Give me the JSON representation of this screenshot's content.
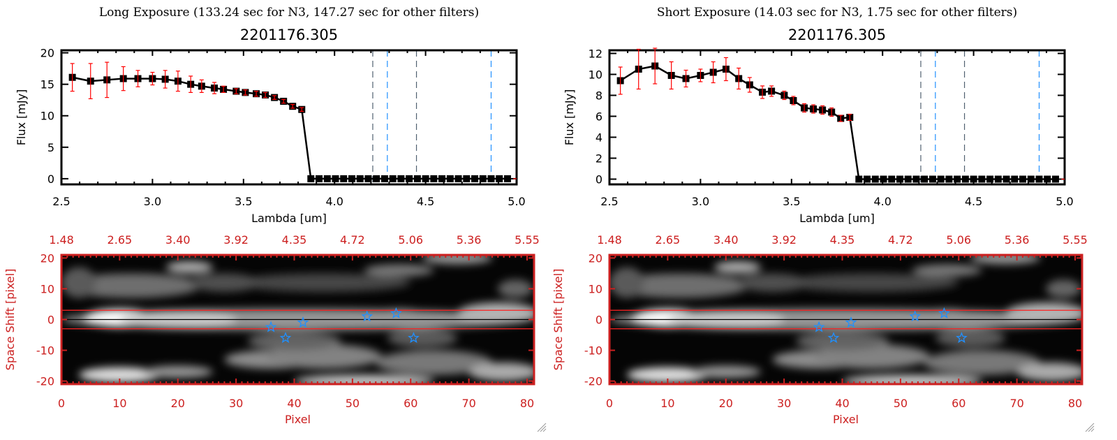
{
  "colors": {
    "axis": "#000000",
    "error": "#ff0000",
    "image_axis": "#cc2020",
    "star": "#2090ff",
    "dash_blue": "#2090ff",
    "dash_gray": "#506070"
  },
  "chart_data": [
    {
      "type": "line",
      "title": "Long Exposure (133.24 sec for N3, 147.27 sec for other filters)",
      "subtitle": "2201176.305",
      "xlabel": "Lambda [um]",
      "ylabel": "Flux [mJy]",
      "xlim": [
        2.5,
        5.0
      ],
      "ylim": [
        -0.9,
        20.4
      ],
      "xticks": [
        "2.5",
        "3.0",
        "3.5",
        "4.0",
        "4.5",
        "5.0"
      ],
      "yticks": [
        "0",
        "5",
        "10",
        "15",
        "20"
      ],
      "x": [
        2.56,
        2.66,
        2.75,
        2.84,
        2.92,
        3.0,
        3.07,
        3.14,
        3.21,
        3.27,
        3.34,
        3.39,
        3.46,
        3.51,
        3.57,
        3.62,
        3.67,
        3.72,
        3.77,
        3.82
      ],
      "y": [
        16.1,
        15.5,
        15.7,
        15.9,
        15.9,
        15.9,
        15.8,
        15.5,
        15.0,
        14.7,
        14.4,
        14.2,
        13.9,
        13.7,
        13.5,
        13.3,
        12.9,
        12.3,
        11.5,
        11.0
      ],
      "yerr": [
        2.2,
        2.8,
        2.8,
        1.9,
        1.3,
        1.0,
        1.4,
        1.6,
        1.3,
        1.0,
        0.9,
        0.5,
        0.4,
        0.4,
        0.4,
        0.4,
        0.3,
        0.3,
        0.3,
        0.3
      ],
      "zero_x": [
        3.87,
        3.915,
        3.96,
        4.005,
        4.05,
        4.095,
        4.14,
        4.185,
        4.23,
        4.275,
        4.32,
        4.365,
        4.41,
        4.455,
        4.5,
        4.545,
        4.59,
        4.635,
        4.68,
        4.725,
        4.77,
        4.815,
        4.86,
        4.905,
        4.95
      ],
      "vlines": [
        {
          "x": 4.21,
          "color": "gray"
        },
        {
          "x": 4.29,
          "color": "blue"
        },
        {
          "x": 4.45,
          "color": "gray"
        },
        {
          "x": 4.86,
          "color": "blue"
        }
      ]
    },
    {
      "type": "line",
      "title": "Short Exposure (14.03 sec for N3, 1.75 sec for other filters)",
      "subtitle": "2201176.305",
      "xlabel": "Lambda [um]",
      "ylabel": "Flux [mJy]",
      "xlim": [
        2.5,
        5.0
      ],
      "ylim": [
        -0.5,
        12.3
      ],
      "xticks": [
        "2.5",
        "3.0",
        "3.5",
        "4.0",
        "4.5",
        "5.0"
      ],
      "yticks": [
        "0",
        "2",
        "4",
        "6",
        "8",
        "10",
        "12"
      ],
      "x": [
        2.56,
        2.66,
        2.75,
        2.84,
        2.92,
        3.0,
        3.07,
        3.14,
        3.21,
        3.27,
        3.34,
        3.39,
        3.46,
        3.51,
        3.57,
        3.62,
        3.67,
        3.72,
        3.77,
        3.82
      ],
      "y": [
        9.4,
        10.5,
        10.8,
        9.9,
        9.6,
        9.9,
        10.2,
        10.5,
        9.6,
        9.0,
        8.3,
        8.4,
        8.0,
        7.5,
        6.8,
        6.7,
        6.6,
        6.4,
        5.8,
        5.9
      ],
      "yerr": [
        1.3,
        1.9,
        1.7,
        1.3,
        0.8,
        0.6,
        1.0,
        1.1,
        1.0,
        0.7,
        0.6,
        0.5,
        0.4,
        0.4,
        0.4,
        0.4,
        0.4,
        0.4,
        0.3,
        0.3
      ],
      "zero_x": [
        3.87,
        3.915,
        3.96,
        4.005,
        4.05,
        4.095,
        4.14,
        4.185,
        4.23,
        4.275,
        4.32,
        4.365,
        4.41,
        4.455,
        4.5,
        4.545,
        4.59,
        4.635,
        4.68,
        4.725,
        4.77,
        4.815,
        4.86,
        4.905,
        4.95
      ],
      "vlines": [
        {
          "x": 4.21,
          "color": "gray"
        },
        {
          "x": 4.29,
          "color": "blue"
        },
        {
          "x": 4.45,
          "color": "gray"
        },
        {
          "x": 4.86,
          "color": "blue"
        }
      ]
    },
    {
      "type": "heatmap",
      "xlabel": "Pixel",
      "ylabel": "Space Shift [pixel]",
      "xlim": [
        0,
        81.2
      ],
      "ylim": [
        -21,
        21
      ],
      "xticks": [
        "0",
        "10",
        "20",
        "30",
        "40",
        "50",
        "60",
        "70",
        "80"
      ],
      "top_xticks": [
        "1.48",
        "2.65",
        "3.40",
        "3.92",
        "4.35",
        "4.72",
        "5.06",
        "5.36",
        "5.55"
      ],
      "yticks": [
        "20",
        "10",
        "0",
        "-10",
        "-20"
      ],
      "aperture_lines": [
        3,
        -3
      ],
      "center_line": 0,
      "stars": [
        {
          "x": 36,
          "y": -2.5
        },
        {
          "x": 38.5,
          "y": -6
        },
        {
          "x": 41.5,
          "y": -1
        },
        {
          "x": 52.5,
          "y": 1
        },
        {
          "x": 57.5,
          "y": 2
        },
        {
          "x": 60.5,
          "y": -6
        }
      ]
    },
    {
      "type": "heatmap",
      "xlabel": "Pixel",
      "ylabel": "Space Shift [pixel]",
      "xlim": [
        0,
        81.2
      ],
      "ylim": [
        -21,
        21
      ],
      "xticks": [
        "0",
        "10",
        "20",
        "30",
        "40",
        "50",
        "60",
        "70",
        "80"
      ],
      "top_xticks": [
        "1.48",
        "2.65",
        "3.40",
        "3.92",
        "4.35",
        "4.72",
        "5.06",
        "5.36",
        "5.55"
      ],
      "yticks": [
        "20",
        "10",
        "0",
        "-10",
        "-20"
      ],
      "aperture_lines": [
        3,
        -3
      ],
      "center_line": 0,
      "stars": [
        {
          "x": 36,
          "y": -2.5
        },
        {
          "x": 38.5,
          "y": -6
        },
        {
          "x": 41.5,
          "y": -1
        },
        {
          "x": 52.5,
          "y": 1
        },
        {
          "x": 57.5,
          "y": 2
        },
        {
          "x": 60.5,
          "y": -6
        }
      ]
    }
  ]
}
